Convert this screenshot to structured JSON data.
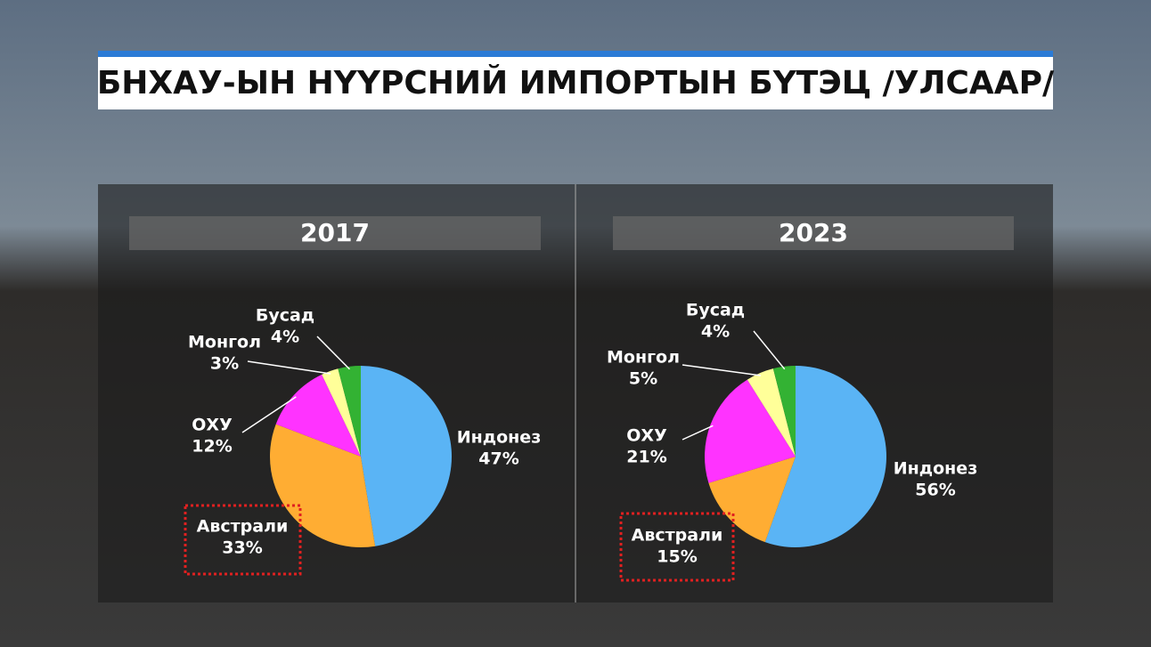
{
  "title": "БНХАУ-ЫН НҮҮРСНИЙ ИМПОРТЫН БҮТЭЦ /УЛСААР/",
  "chart_data": [
    {
      "type": "pie",
      "title": "2017",
      "categories": [
        "Индонез",
        "Австрали",
        "ОХУ",
        "Монгол",
        "Бусад"
      ],
      "values": [
        47,
        33,
        12,
        3,
        4
      ],
      "value_labels": [
        "47%",
        "33%",
        "12%",
        "3%",
        "4%"
      ],
      "colors": [
        "#5ab4f5",
        "#ffad33",
        "#ff33ff",
        "#ffff99",
        "#33b233"
      ]
    },
    {
      "type": "pie",
      "title": "2023",
      "categories": [
        "Индонез",
        "Австрали",
        "ОХУ",
        "Монгол",
        "Бусад"
      ],
      "values": [
        56,
        15,
        21,
        5,
        4
      ],
      "value_labels": [
        "56%",
        "15%",
        "21%",
        "5%",
        "4%"
      ],
      "colors": [
        "#5ab4f5",
        "#ffad33",
        "#ff33ff",
        "#ffff99",
        "#33b233"
      ]
    }
  ]
}
